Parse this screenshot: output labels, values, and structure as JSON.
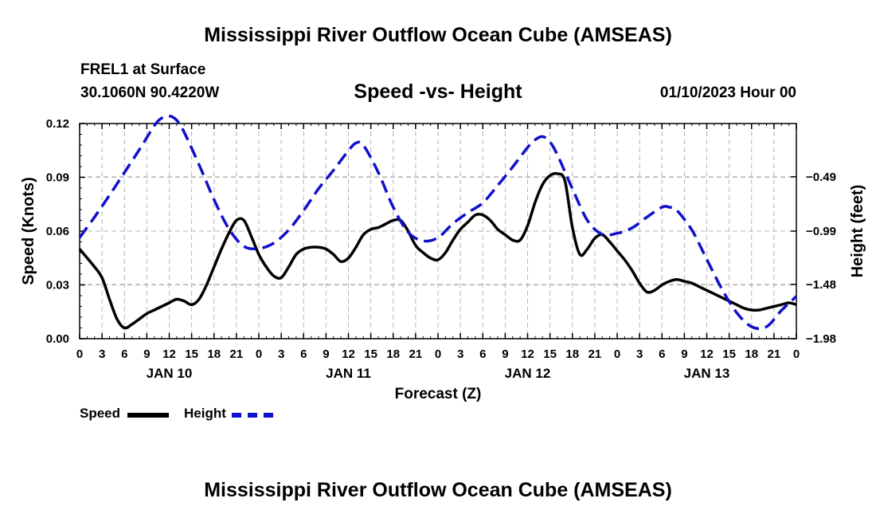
{
  "header": {
    "title": "Mississippi River Outflow Ocean Cube (AMSEAS)",
    "station": "FREL1 at Surface",
    "coords": "30.1060N  90.4220W",
    "chart_title": "Speed -vs- Height",
    "datetime": "01/10/2023 Hour 00"
  },
  "footer": {
    "title": "Mississippi River Outflow Ocean Cube (AMSEAS)"
  },
  "legend": {
    "speed_label": "Speed",
    "height_label": "Height"
  },
  "colors": {
    "speed": "#000000",
    "height": "#1010cc",
    "grid": "#b4b4b4"
  },
  "chart_data": {
    "type": "line",
    "title": "Speed -vs- Height",
    "xlabel": "Forecast (Z)",
    "ylabel": "Speed (Knots)",
    "y2label": "Height (feet)",
    "xlim": [
      0,
      96
    ],
    "ylim": [
      0,
      0.12
    ],
    "y2lim": [
      -1.98,
      -0.0
    ],
    "y2_plot_top": 0.0,
    "xticks": [
      0,
      3,
      6,
      9,
      12,
      15,
      18,
      21,
      24,
      27,
      30,
      33,
      36,
      39,
      42,
      45,
      48,
      51,
      54,
      57,
      60,
      63,
      66,
      69,
      72,
      75,
      78,
      81,
      84,
      87,
      90,
      93,
      96
    ],
    "xtick_labels": [
      "0",
      "3",
      "6",
      "9",
      "12",
      "15",
      "18",
      "21",
      "0",
      "3",
      "6",
      "9",
      "12",
      "15",
      "18",
      "21",
      "0",
      "3",
      "6",
      "9",
      "12",
      "15",
      "18",
      "21",
      "0",
      "3",
      "6",
      "9",
      "12",
      "15",
      "18",
      "21",
      "0"
    ],
    "day_labels": [
      {
        "hour": 12,
        "label": "JAN 10"
      },
      {
        "hour": 36,
        "label": "JAN 11"
      },
      {
        "hour": 60,
        "label": "JAN 12"
      },
      {
        "hour": 84,
        "label": "JAN 13"
      }
    ],
    "yticks": [
      0.0,
      0.03,
      0.06,
      0.09,
      0.12
    ],
    "ytick_labels": [
      "0.00",
      "0.03",
      "0.06",
      "0.09",
      "0.12"
    ],
    "y2ticks": [
      -1.98,
      -1.48,
      -0.99,
      -0.49
    ],
    "y2tick_labels": [
      "−1.98",
      "−1.48",
      "−0.99",
      "−0.49"
    ],
    "grid": true,
    "series": [
      {
        "name": "Speed",
        "axis": "left",
        "style": "solid",
        "x": [
          0,
          2,
          3,
          4,
          5,
          6,
          7,
          8,
          9,
          10,
          11,
          12,
          13,
          14,
          15,
          16,
          17,
          18,
          19,
          20,
          21,
          22,
          23,
          24,
          25,
          26,
          27,
          28,
          29,
          30,
          31,
          32,
          33,
          34,
          35,
          36,
          37,
          38,
          39,
          40,
          41,
          42,
          43,
          44,
          45,
          46,
          47,
          48,
          49,
          50,
          51,
          52,
          53,
          54,
          55,
          56,
          57,
          58,
          59,
          60,
          61,
          62,
          63,
          64,
          65,
          66,
          67,
          68,
          69,
          70,
          71,
          72,
          73,
          74,
          75,
          76,
          77,
          78,
          79,
          80,
          81,
          82,
          83,
          84,
          85,
          86,
          87,
          88,
          89,
          90,
          91,
          92,
          93,
          94,
          95,
          96
        ],
        "values": [
          0.05,
          0.04,
          0.034,
          0.022,
          0.011,
          0.006,
          0.008,
          0.011,
          0.014,
          0.016,
          0.018,
          0.02,
          0.022,
          0.021,
          0.019,
          0.022,
          0.03,
          0.04,
          0.05,
          0.059,
          0.066,
          0.066,
          0.057,
          0.047,
          0.04,
          0.035,
          0.034,
          0.04,
          0.047,
          0.05,
          0.051,
          0.051,
          0.05,
          0.047,
          0.043,
          0.045,
          0.051,
          0.058,
          0.061,
          0.062,
          0.064,
          0.066,
          0.066,
          0.06,
          0.052,
          0.048,
          0.045,
          0.044,
          0.048,
          0.055,
          0.061,
          0.065,
          0.069,
          0.069,
          0.066,
          0.061,
          0.058,
          0.055,
          0.055,
          0.063,
          0.076,
          0.086,
          0.091,
          0.092,
          0.088,
          0.062,
          0.047,
          0.05,
          0.056,
          0.058,
          0.054,
          0.049,
          0.044,
          0.038,
          0.031,
          0.026,
          0.027,
          0.03,
          0.032,
          0.033,
          0.032,
          0.031,
          0.029,
          0.027,
          0.025,
          0.023,
          0.021,
          0.019,
          0.017,
          0.016,
          0.016,
          0.017,
          0.018,
          0.019,
          0.02,
          0.019
        ]
      },
      {
        "name": "Height",
        "axis": "right",
        "style": "dashed",
        "x": [
          0,
          2,
          4,
          6,
          8,
          10,
          11,
          12,
          13,
          14,
          16,
          18,
          20,
          22,
          24,
          26,
          28,
          30,
          32,
          34,
          36,
          37,
          38,
          40,
          42,
          44,
          46,
          48,
          50,
          52,
          54,
          56,
          58,
          60,
          61,
          62,
          63,
          64,
          66,
          68,
          70,
          72,
          74,
          76,
          78,
          79,
          80,
          82,
          84,
          86,
          88,
          90,
          92,
          94,
          96
        ],
        "values": [
          -1.05,
          -0.86,
          -0.66,
          -0.45,
          -0.24,
          -0.02,
          0.05,
          0.07,
          0.03,
          -0.08,
          -0.38,
          -0.7,
          -0.97,
          -1.13,
          -1.15,
          -1.1,
          -0.98,
          -0.8,
          -0.6,
          -0.43,
          -0.25,
          -0.18,
          -0.2,
          -0.45,
          -0.77,
          -1.0,
          -1.08,
          -1.05,
          -0.92,
          -0.82,
          -0.73,
          -0.57,
          -0.4,
          -0.22,
          -0.15,
          -0.12,
          -0.17,
          -0.29,
          -0.6,
          -0.89,
          -1.02,
          -1.01,
          -0.96,
          -0.86,
          -0.77,
          -0.77,
          -0.8,
          -0.98,
          -1.25,
          -1.52,
          -1.74,
          -1.87,
          -1.87,
          -1.72,
          -1.59
        ]
      }
    ]
  }
}
